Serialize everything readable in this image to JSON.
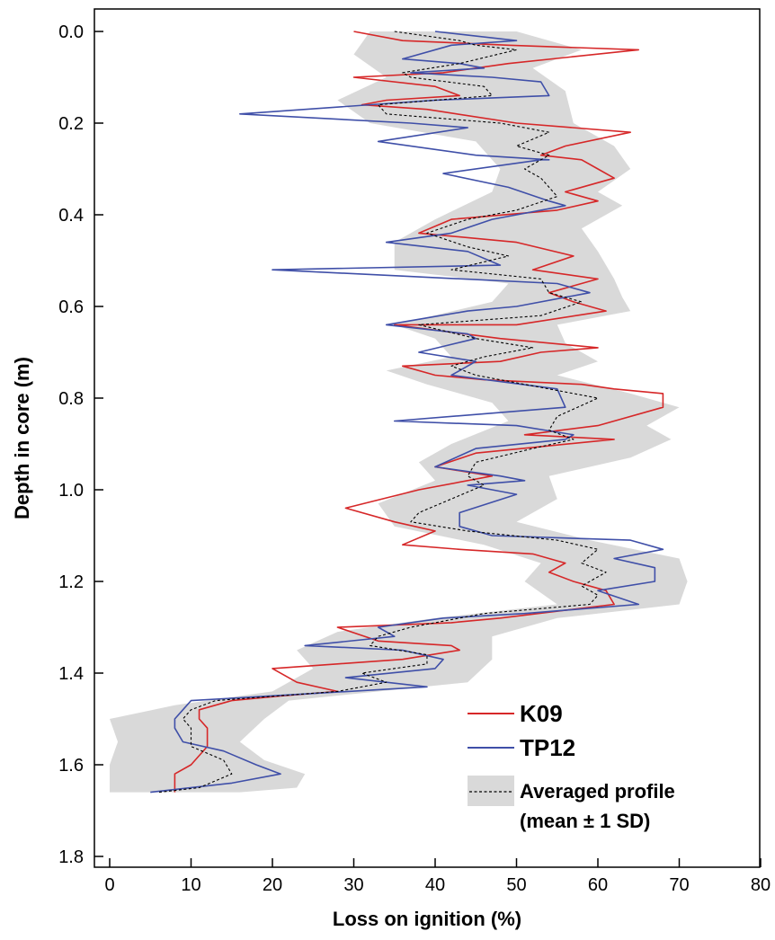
{
  "chart_data": {
    "type": "line",
    "xlabel": "Loss on ignition (%)",
    "ylabel": "Depth in core (m)",
    "xlim": [
      0,
      80
    ],
    "ylim": [
      1.8,
      -0.05
    ],
    "y_inverted": true,
    "x_ticks": [
      "0",
      "10",
      "20",
      "30",
      "40",
      "50",
      "60",
      "70",
      "80"
    ],
    "y_ticks": [
      "0.0",
      "0.2",
      "0.4",
      "0.6",
      "0.8",
      "1.0",
      "1.2",
      "1.4",
      "1.6",
      "1.8"
    ],
    "legend": {
      "placement": "bottom-right",
      "entries": [
        "K09",
        "TP12",
        "Averaged profile",
        "(mean ± 1 SD)"
      ]
    },
    "colors": {
      "K09": "#d62728",
      "TP12": "#3f4fa8",
      "mean": "#000000",
      "sd_band": "#d9d9d9"
    },
    "series": [
      {
        "name": "K09",
        "points": [
          [
            30,
            0
          ],
          [
            36,
            0.02
          ],
          [
            49,
            0.03
          ],
          [
            65,
            0.04
          ],
          [
            49,
            0.07
          ],
          [
            41,
            0.09
          ],
          [
            30,
            0.1
          ],
          [
            40,
            0.12
          ],
          [
            43,
            0.14
          ],
          [
            34,
            0.15
          ],
          [
            31,
            0.16
          ],
          [
            39,
            0.17
          ],
          [
            50,
            0.2
          ],
          [
            64,
            0.22
          ],
          [
            56,
            0.25
          ],
          [
            53,
            0.27
          ],
          [
            58,
            0.28
          ],
          [
            60,
            0.3
          ],
          [
            62,
            0.32
          ],
          [
            56,
            0.35
          ],
          [
            60,
            0.37
          ],
          [
            55,
            0.39
          ],
          [
            42,
            0.41
          ],
          [
            38,
            0.44
          ],
          [
            50,
            0.46
          ],
          [
            57,
            0.49
          ],
          [
            52,
            0.52
          ],
          [
            60,
            0.54
          ],
          [
            54,
            0.57
          ],
          [
            57,
            0.59
          ],
          [
            61,
            0.61
          ],
          [
            50,
            0.64
          ],
          [
            35,
            0.64
          ],
          [
            48,
            0.67
          ],
          [
            60,
            0.69
          ],
          [
            53,
            0.7
          ],
          [
            48,
            0.72
          ],
          [
            36,
            0.73
          ],
          [
            40,
            0.75
          ],
          [
            46,
            0.76
          ],
          [
            58,
            0.77
          ],
          [
            62,
            0.78
          ],
          [
            68,
            0.79
          ],
          [
            68,
            0.82
          ],
          [
            60,
            0.86
          ],
          [
            51,
            0.88
          ],
          [
            62,
            0.89
          ],
          [
            45,
            0.92
          ],
          [
            40,
            0.95
          ],
          [
            47,
            0.97
          ],
          [
            38,
            1.0
          ],
          [
            29,
            1.04
          ],
          [
            35,
            1.07
          ],
          [
            40,
            1.09
          ],
          [
            36,
            1.12
          ],
          [
            43,
            1.13
          ],
          [
            52,
            1.14
          ],
          [
            56,
            1.16
          ],
          [
            54,
            1.18
          ],
          [
            57,
            1.2
          ],
          [
            61,
            1.22
          ],
          [
            62,
            1.25
          ],
          [
            48,
            1.28
          ],
          [
            42,
            1.29
          ],
          [
            28,
            1.3
          ],
          [
            33,
            1.33
          ],
          [
            42,
            1.34
          ],
          [
            43,
            1.35
          ],
          [
            36,
            1.37
          ],
          [
            28,
            1.38
          ],
          [
            20,
            1.39
          ],
          [
            23,
            1.42
          ],
          [
            28,
            1.44
          ],
          [
            21,
            1.45
          ],
          [
            15,
            1.46
          ],
          [
            11,
            1.48
          ],
          [
            11,
            1.5
          ],
          [
            12,
            1.52
          ],
          [
            12,
            1.56
          ],
          [
            10,
            1.6
          ],
          [
            8,
            1.62
          ],
          [
            8,
            1.66
          ]
        ]
      },
      {
        "name": "TP12",
        "points": [
          [
            40,
            0
          ],
          [
            50,
            0.02
          ],
          [
            42,
            0.03
          ],
          [
            36,
            0.06
          ],
          [
            43,
            0.07
          ],
          [
            46,
            0.08
          ],
          [
            37,
            0.09
          ],
          [
            47,
            0.1
          ],
          [
            53,
            0.11
          ],
          [
            54,
            0.14
          ],
          [
            40,
            0.15
          ],
          [
            16,
            0.18
          ],
          [
            37,
            0.2
          ],
          [
            44,
            0.21
          ],
          [
            33,
            0.24
          ],
          [
            45,
            0.27
          ],
          [
            54,
            0.28
          ],
          [
            53,
            0.28
          ],
          [
            41,
            0.31
          ],
          [
            49,
            0.34
          ],
          [
            54,
            0.37
          ],
          [
            56,
            0.38
          ],
          [
            47,
            0.41
          ],
          [
            42,
            0.44
          ],
          [
            34,
            0.46
          ],
          [
            44,
            0.48
          ],
          [
            48,
            0.51
          ],
          [
            20,
            0.52
          ],
          [
            55,
            0.55
          ],
          [
            55,
            0.55
          ],
          [
            59,
            0.57
          ],
          [
            50,
            0.6
          ],
          [
            44,
            0.61
          ],
          [
            34,
            0.64
          ],
          [
            44,
            0.66
          ],
          [
            45,
            0.67
          ],
          [
            38,
            0.7
          ],
          [
            45,
            0.72
          ],
          [
            42,
            0.75
          ],
          [
            55,
            0.78
          ],
          [
            56,
            0.82
          ],
          [
            35,
            0.85
          ],
          [
            50,
            0.86
          ],
          [
            57,
            0.88
          ],
          [
            56,
            0.89
          ],
          [
            45,
            0.91
          ],
          [
            40,
            0.95
          ],
          [
            48,
            0.97
          ],
          [
            51,
            0.98
          ],
          [
            44,
            0.99
          ],
          [
            50,
            1.01
          ],
          [
            43,
            1.05
          ],
          [
            43,
            1.08
          ],
          [
            47,
            1.1
          ],
          [
            64,
            1.11
          ],
          [
            68,
            1.13
          ],
          [
            62,
            1.15
          ],
          [
            67,
            1.17
          ],
          [
            67,
            1.2
          ],
          [
            60,
            1.22
          ],
          [
            65,
            1.25
          ],
          [
            51,
            1.27
          ],
          [
            41,
            1.28
          ],
          [
            33,
            1.3
          ],
          [
            35,
            1.32
          ],
          [
            24,
            1.34
          ],
          [
            36,
            1.35
          ],
          [
            41,
            1.37
          ],
          [
            40,
            1.39
          ],
          [
            29,
            1.41
          ],
          [
            39,
            1.43
          ],
          [
            10,
            1.46
          ],
          [
            9,
            1.48
          ],
          [
            8,
            1.5
          ],
          [
            8,
            1.52
          ],
          [
            9,
            1.55
          ],
          [
            14,
            1.57
          ],
          [
            18,
            1.6
          ],
          [
            21,
            1.62
          ],
          [
            15,
            1.64
          ],
          [
            5,
            1.66
          ]
        ]
      },
      {
        "name": "Averaged profile",
        "points": [
          [
            35,
            0
          ],
          [
            43,
            0.02
          ],
          [
            45,
            0.03
          ],
          [
            50,
            0.04
          ],
          [
            43,
            0.07
          ],
          [
            36,
            0.09
          ],
          [
            37,
            0.1
          ],
          [
            46,
            0.12
          ],
          [
            47,
            0.14
          ],
          [
            33,
            0.16
          ],
          [
            34,
            0.18
          ],
          [
            48,
            0.2
          ],
          [
            54,
            0.22
          ],
          [
            50,
            0.25
          ],
          [
            54,
            0.27
          ],
          [
            51,
            0.3
          ],
          [
            53,
            0.32
          ],
          [
            55,
            0.36
          ],
          [
            50,
            0.39
          ],
          [
            44,
            0.41
          ],
          [
            39,
            0.44
          ],
          [
            44,
            0.47
          ],
          [
            49,
            0.49
          ],
          [
            42,
            0.52
          ],
          [
            53,
            0.54
          ],
          [
            54,
            0.57
          ],
          [
            58,
            0.59
          ],
          [
            53,
            0.62
          ],
          [
            38,
            0.64
          ],
          [
            45,
            0.67
          ],
          [
            52,
            0.69
          ],
          [
            46,
            0.71
          ],
          [
            42,
            0.73
          ],
          [
            45,
            0.75
          ],
          [
            54,
            0.78
          ],
          [
            60,
            0.8
          ],
          [
            55,
            0.84
          ],
          [
            54,
            0.87
          ],
          [
            57,
            0.89
          ],
          [
            52,
            0.91
          ],
          [
            45,
            0.94
          ],
          [
            44,
            0.97
          ],
          [
            46,
            0.99
          ],
          [
            42,
            1.02
          ],
          [
            38,
            1.05
          ],
          [
            37,
            1.07
          ],
          [
            44,
            1.09
          ],
          [
            55,
            1.11
          ],
          [
            60,
            1.13
          ],
          [
            58,
            1.16
          ],
          [
            61,
            1.18
          ],
          [
            58,
            1.21
          ],
          [
            60,
            1.23
          ],
          [
            59,
            1.25
          ],
          [
            46,
            1.27
          ],
          [
            37,
            1.3
          ],
          [
            33,
            1.32
          ],
          [
            32,
            1.34
          ],
          [
            39,
            1.36
          ],
          [
            39,
            1.38
          ],
          [
            31,
            1.4
          ],
          [
            34,
            1.42
          ],
          [
            28,
            1.44
          ],
          [
            13,
            1.46
          ],
          [
            10,
            1.48
          ],
          [
            9,
            1.5
          ],
          [
            10,
            1.52
          ],
          [
            10,
            1.56
          ],
          [
            14,
            1.59
          ],
          [
            15,
            1.62
          ],
          [
            11,
            1.65
          ],
          [
            6,
            1.66
          ]
        ]
      }
    ],
    "sd_band": {
      "name": "mean ± 1 SD",
      "left": [
        [
          32,
          0
        ],
        [
          30,
          0.05
        ],
        [
          34,
          0.1
        ],
        [
          28,
          0.15
        ],
        [
          32,
          0.2
        ],
        [
          45,
          0.24
        ],
        [
          48,
          0.3
        ],
        [
          47,
          0.35
        ],
        [
          40,
          0.41
        ],
        [
          35,
          0.46
        ],
        [
          35,
          0.52
        ],
        [
          49,
          0.55
        ],
        [
          47,
          0.59
        ],
        [
          35,
          0.64
        ],
        [
          40,
          0.67
        ],
        [
          42,
          0.71
        ],
        [
          34,
          0.74
        ],
        [
          39,
          0.77
        ],
        [
          47,
          0.81
        ],
        [
          49,
          0.85
        ],
        [
          42,
          0.9
        ],
        [
          38,
          0.94
        ],
        [
          40,
          0.98
        ],
        [
          33,
          1.03
        ],
        [
          35,
          1.08
        ],
        [
          46,
          1.12
        ],
        [
          53,
          1.16
        ],
        [
          51,
          1.2
        ],
        [
          55,
          1.25
        ],
        [
          40,
          1.28
        ],
        [
          28,
          1.31
        ],
        [
          23,
          1.35
        ],
        [
          25,
          1.39
        ],
        [
          20,
          1.44
        ],
        [
          8,
          1.47
        ],
        [
          0,
          1.5
        ],
        [
          1,
          1.55
        ],
        [
          0,
          1.6
        ],
        [
          0,
          1.66
        ]
      ],
      "right": [
        [
          50,
          0
        ],
        [
          58,
          0.04
        ],
        [
          52,
          0.08
        ],
        [
          56,
          0.13
        ],
        [
          57,
          0.2
        ],
        [
          62,
          0.25
        ],
        [
          64,
          0.3
        ],
        [
          60,
          0.35
        ],
        [
          63,
          0.38
        ],
        [
          58,
          0.43
        ],
        [
          60,
          0.48
        ],
        [
          62,
          0.54
        ],
        [
          63,
          0.58
        ],
        [
          64,
          0.61
        ],
        [
          55,
          0.64
        ],
        [
          56,
          0.68
        ],
        [
          60,
          0.72
        ],
        [
          55,
          0.75
        ],
        [
          64,
          0.79
        ],
        [
          70,
          0.82
        ],
        [
          66,
          0.86
        ],
        [
          69,
          0.89
        ],
        [
          64,
          0.93
        ],
        [
          54,
          0.97
        ],
        [
          55,
          1.02
        ],
        [
          50,
          1.07
        ],
        [
          59,
          1.11
        ],
        [
          70,
          1.15
        ],
        [
          71,
          1.2
        ],
        [
          70,
          1.25
        ],
        [
          55,
          1.28
        ],
        [
          47,
          1.32
        ],
        [
          47,
          1.37
        ],
        [
          44,
          1.42
        ],
        [
          22,
          1.46
        ],
        [
          19,
          1.5
        ],
        [
          16,
          1.55
        ],
        [
          19,
          1.59
        ],
        [
          24,
          1.62
        ],
        [
          23,
          1.65
        ],
        [
          16,
          1.66
        ]
      ]
    }
  }
}
